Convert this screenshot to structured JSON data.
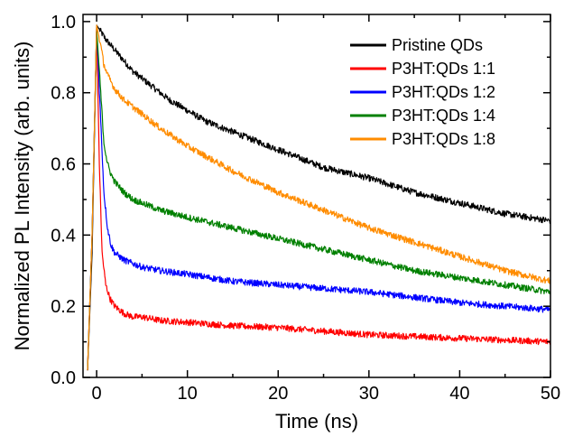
{
  "chart_data": {
    "type": "line",
    "xlabel": "Time (ns)",
    "ylabel": "Normalized PL Intensity (arb. units)",
    "xlim": [
      -1.5,
      50
    ],
    "ylim": [
      0.0,
      1.02
    ],
    "x_ticks": [
      0,
      10,
      20,
      30,
      40,
      50
    ],
    "y_ticks": [
      0.0,
      0.2,
      0.4,
      0.6,
      0.8,
      1.0
    ],
    "x_tick_labels": [
      "0",
      "10",
      "20",
      "30",
      "40",
      "50"
    ],
    "y_tick_labels": [
      "0.0",
      "0.2",
      "0.4",
      "0.6",
      "0.8",
      "1.0"
    ],
    "grid": false,
    "legend_position": "top-right",
    "series": [
      {
        "name": "Pristine QDs",
        "color": "#000000",
        "x": [
          -1.0,
          -0.5,
          0.0,
          0.5,
          1,
          2,
          3,
          4,
          5,
          6,
          8,
          10,
          12,
          15,
          20,
          25,
          30,
          35,
          40,
          45,
          50
        ],
        "y": [
          0.02,
          0.35,
          0.99,
          0.97,
          0.95,
          0.92,
          0.89,
          0.86,
          0.84,
          0.82,
          0.78,
          0.75,
          0.72,
          0.69,
          0.64,
          0.59,
          0.56,
          0.52,
          0.49,
          0.46,
          0.44
        ]
      },
      {
        "name": "P3HT:QDs 1:1",
        "color": "#ff0000",
        "x": [
          -1.0,
          -0.5,
          0.0,
          0.3,
          0.6,
          1,
          1.5,
          2,
          3,
          4,
          5,
          7,
          10,
          15,
          20,
          25,
          30,
          35,
          40,
          45,
          50
        ],
        "y": [
          0.02,
          0.4,
          0.98,
          0.6,
          0.35,
          0.26,
          0.22,
          0.2,
          0.18,
          0.17,
          0.17,
          0.16,
          0.155,
          0.145,
          0.14,
          0.13,
          0.12,
          0.115,
          0.11,
          0.105,
          0.1
        ]
      },
      {
        "name": "P3HT:QDs 1:2",
        "color": "#0000ff",
        "x": [
          -1.0,
          -0.5,
          0.0,
          0.4,
          0.8,
          1.2,
          1.6,
          2,
          3,
          4,
          5,
          7,
          10,
          15,
          20,
          25,
          30,
          35,
          40,
          45,
          50
        ],
        "y": [
          0.02,
          0.4,
          0.98,
          0.75,
          0.52,
          0.42,
          0.37,
          0.35,
          0.33,
          0.32,
          0.31,
          0.3,
          0.29,
          0.27,
          0.26,
          0.25,
          0.24,
          0.225,
          0.21,
          0.2,
          0.19
        ]
      },
      {
        "name": "P3HT:QDs 1:4",
        "color": "#008000",
        "x": [
          -1.0,
          -0.5,
          0.0,
          0.4,
          0.8,
          1.2,
          1.6,
          2,
          3,
          4,
          5,
          7,
          10,
          15,
          20,
          25,
          30,
          35,
          40,
          45,
          50
        ],
        "y": [
          0.02,
          0.4,
          0.98,
          0.82,
          0.66,
          0.6,
          0.57,
          0.55,
          0.52,
          0.5,
          0.49,
          0.47,
          0.45,
          0.42,
          0.39,
          0.36,
          0.33,
          0.3,
          0.28,
          0.26,
          0.24
        ]
      },
      {
        "name": "P3HT:QDs 1:8",
        "color": "#ff8c00",
        "x": [
          -1.0,
          -0.5,
          0.0,
          0.4,
          0.8,
          1.2,
          1.6,
          2,
          3,
          4,
          5,
          7,
          10,
          15,
          20,
          25,
          30,
          35,
          40,
          45,
          50
        ],
        "y": [
          0.02,
          0.4,
          0.99,
          0.94,
          0.88,
          0.85,
          0.83,
          0.81,
          0.78,
          0.76,
          0.74,
          0.7,
          0.65,
          0.58,
          0.52,
          0.47,
          0.42,
          0.38,
          0.34,
          0.3,
          0.27
        ]
      }
    ]
  }
}
